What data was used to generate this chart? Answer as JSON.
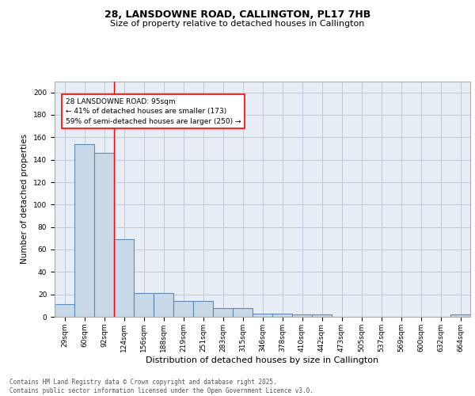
{
  "title_line1": "28, LANSDOWNE ROAD, CALLINGTON, PL17 7HB",
  "title_line2": "Size of property relative to detached houses in Callington",
  "xlabel": "Distribution of detached houses by size in Callington",
  "ylabel": "Number of detached properties",
  "categories": [
    "29sqm",
    "60sqm",
    "92sqm",
    "124sqm",
    "156sqm",
    "188sqm",
    "219sqm",
    "251sqm",
    "283sqm",
    "315sqm",
    "346sqm",
    "378sqm",
    "410sqm",
    "442sqm",
    "473sqm",
    "505sqm",
    "537sqm",
    "569sqm",
    "600sqm",
    "632sqm",
    "664sqm"
  ],
  "values": [
    11,
    154,
    146,
    69,
    21,
    21,
    14,
    14,
    8,
    8,
    3,
    3,
    2,
    2,
    0,
    0,
    0,
    0,
    0,
    0,
    2
  ],
  "bar_color": "#c9d9e8",
  "bar_edge_color": "#5a8ab5",
  "bar_edge_width": 0.8,
  "grid_color": "#c0c8d8",
  "background_color": "#e8eef5",
  "red_line_x": 2.5,
  "annotation_text": "28 LANSDOWNE ROAD: 95sqm\n← 41% of detached houses are smaller (173)\n59% of semi-detached houses are larger (250) →",
  "ylim": [
    0,
    210
  ],
  "yticks": [
    0,
    20,
    40,
    60,
    80,
    100,
    120,
    140,
    160,
    180,
    200
  ],
  "footer_line1": "Contains HM Land Registry data © Crown copyright and database right 2025.",
  "footer_line2": "Contains public sector information licensed under the Open Government Licence v3.0.",
  "title1_fontsize": 9,
  "title2_fontsize": 8,
  "ylabel_fontsize": 7.5,
  "xlabel_fontsize": 8,
  "tick_fontsize": 6.5,
  "annotation_fontsize": 6.5,
  "footer_fontsize": 5.5
}
